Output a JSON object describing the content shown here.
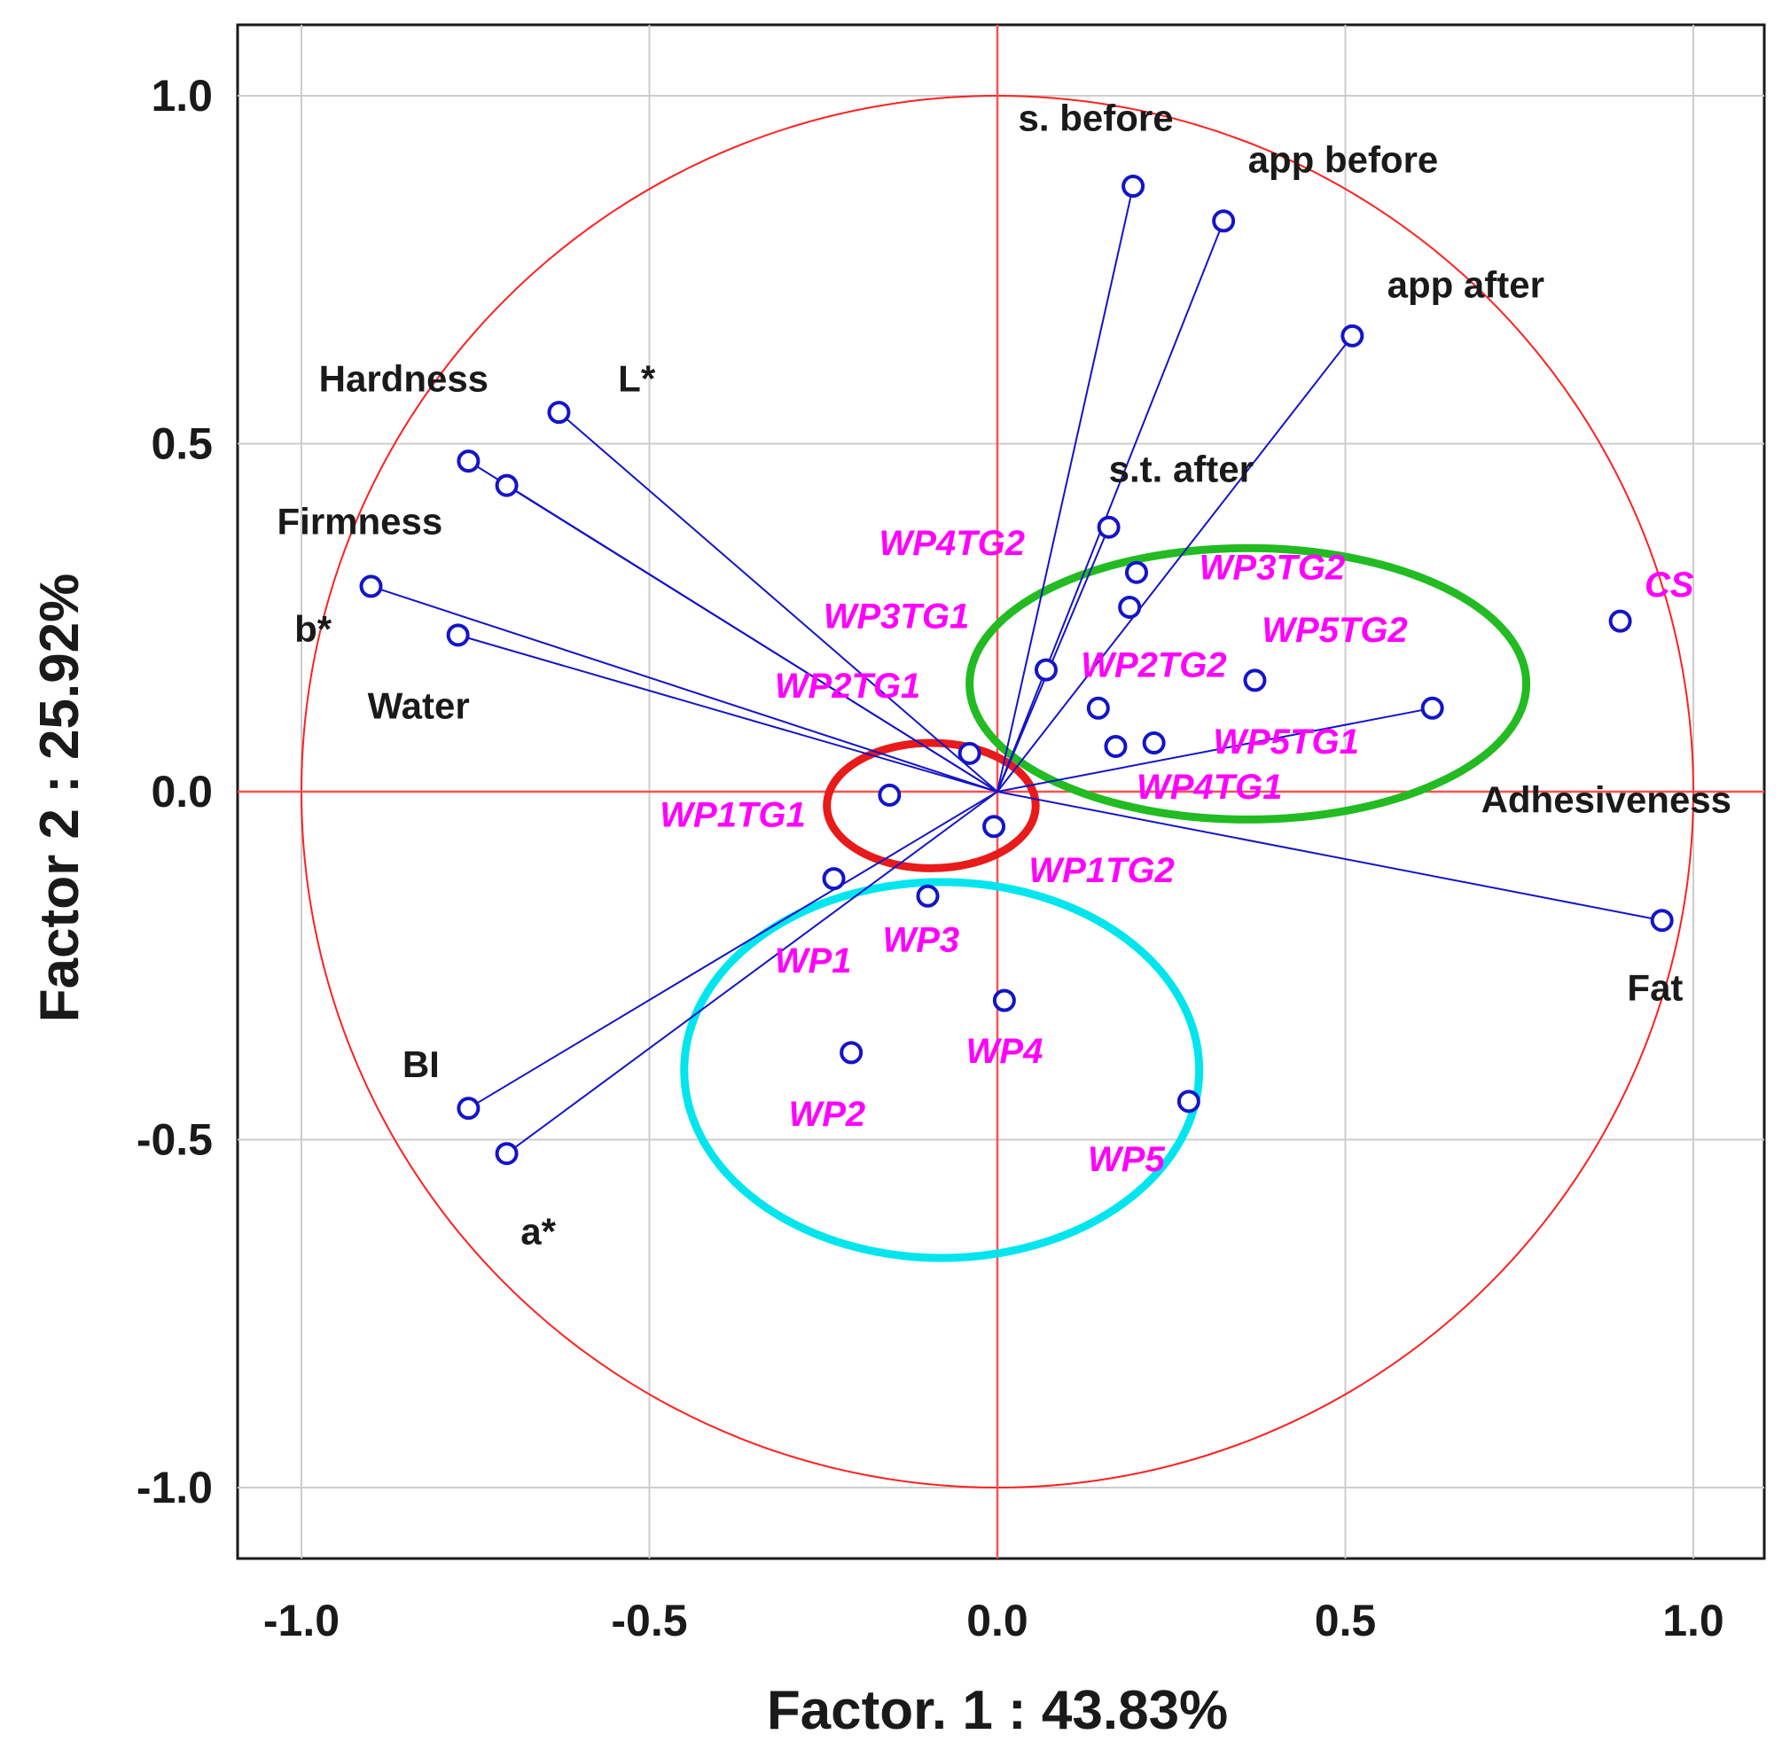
{
  "chart_data": {
    "type": "scatter",
    "title": "",
    "xlabel": "Factor. 1 : 43.83%",
    "ylabel": "Factor 2 : 25.92%",
    "xlim": [
      -1.1,
      1.1
    ],
    "ylim": [
      -1.1,
      1.1
    ],
    "x_ticks": [
      -1.0,
      -0.5,
      0.0,
      0.5,
      1.0
    ],
    "y_ticks": [
      1.0,
      0.5,
      0.0,
      -0.5,
      -1.0
    ],
    "x_tick_labels": [
      "-1.0",
      "-0.5",
      "0.0",
      "0.5",
      "1.0"
    ],
    "y_tick_labels": [
      "1.0",
      "0.5",
      "0.0",
      "-0.5",
      "-1.0"
    ],
    "grid": true,
    "unit_circle": true,
    "colors": {
      "circle": "#ff2020",
      "axes": "#ff5050",
      "vector": "#1414c8",
      "variable_label": "#1a1a1a",
      "sample_label": "#ff00ff",
      "grid": "#cccccc"
    },
    "variables": [
      {
        "name": "s. before",
        "x": 0.195,
        "y": 0.87,
        "lx": 0.03,
        "ly": 0.95,
        "anchor": "start"
      },
      {
        "name": "app before",
        "x": 0.325,
        "y": 0.82,
        "lx": 0.36,
        "ly": 0.89,
        "anchor": "start"
      },
      {
        "name": "app after",
        "x": 0.51,
        "y": 0.655,
        "lx": 0.56,
        "ly": 0.71,
        "anchor": "start"
      },
      {
        "name": "s.t. after",
        "x": 0.16,
        "y": 0.38,
        "lx": 0.16,
        "ly": 0.445,
        "anchor": "start"
      },
      {
        "name": "Hardness",
        "x": -0.76,
        "y": 0.475,
        "lx": -0.975,
        "ly": 0.575,
        "anchor": "start"
      },
      {
        "name": "L*",
        "x": -0.63,
        "y": 0.545,
        "lx": -0.545,
        "ly": 0.575,
        "anchor": "start"
      },
      {
        "name": "Firmness",
        "x": -0.705,
        "y": 0.44,
        "lx": -1.035,
        "ly": 0.37,
        "anchor": "start"
      },
      {
        "name": "b*",
        "x": -0.9,
        "y": 0.295,
        "lx": -1.01,
        "ly": 0.215,
        "anchor": "start"
      },
      {
        "name": "Water",
        "x": -0.775,
        "y": 0.225,
        "lx": -0.905,
        "ly": 0.105,
        "anchor": "start"
      },
      {
        "name": "Adhesiveness",
        "x": 0.625,
        "y": 0.12,
        "lx": 0.695,
        "ly": -0.03,
        "anchor": "start"
      },
      {
        "name": "Fat",
        "x": 0.955,
        "y": -0.185,
        "lx": 0.905,
        "ly": -0.3,
        "anchor": "start"
      },
      {
        "name": "BI",
        "x": -0.76,
        "y": -0.455,
        "lx": -0.855,
        "ly": -0.41,
        "anchor": "start"
      },
      {
        "name": "a*",
        "x": -0.705,
        "y": -0.52,
        "lx": -0.685,
        "ly": -0.65,
        "anchor": "start"
      }
    ],
    "samples": [
      {
        "name": "CS",
        "x": 0.895,
        "y": 0.245,
        "lx": 0.93,
        "ly": 0.28,
        "anchor": "start"
      },
      {
        "name": "WP4TG2",
        "x": 0.07,
        "y": 0.175,
        "lx": -0.17,
        "ly": 0.34,
        "anchor": "start"
      },
      {
        "name": "WP3TG2",
        "x": 0.2,
        "y": 0.315,
        "lx": 0.29,
        "ly": 0.305,
        "anchor": "start"
      },
      {
        "name": "WP3TG1",
        "x": -0.04,
        "y": 0.055,
        "lx": -0.25,
        "ly": 0.235,
        "anchor": "start"
      },
      {
        "name": "WP5TG2",
        "x": 0.37,
        "y": 0.16,
        "lx": 0.38,
        "ly": 0.215,
        "anchor": "start"
      },
      {
        "name": "WP2TG1",
        "x": 0.145,
        "y": 0.12,
        "lx": -0.32,
        "ly": 0.135,
        "anchor": "start"
      },
      {
        "name": "WP2TG2",
        "x": 0.19,
        "y": 0.265,
        "lx": 0.12,
        "ly": 0.165,
        "anchor": "start"
      },
      {
        "name": "WP5TG1",
        "x": 0.225,
        "y": 0.07,
        "lx": 0.31,
        "ly": 0.055,
        "anchor": "start"
      },
      {
        "name": "WP4TG1",
        "x": 0.17,
        "y": 0.065,
        "lx": 0.2,
        "ly": -0.01,
        "anchor": "start"
      },
      {
        "name": "WP1TG1",
        "x": -0.155,
        "y": -0.005,
        "lx": -0.485,
        "ly": -0.05,
        "anchor": "start"
      },
      {
        "name": "WP1TG2",
        "x": -0.005,
        "y": -0.05,
        "lx": 0.045,
        "ly": -0.13,
        "anchor": "start"
      },
      {
        "name": "WP1",
        "x": -0.235,
        "y": -0.125,
        "lx": -0.32,
        "ly": -0.26,
        "anchor": "start"
      },
      {
        "name": "WP3",
        "x": -0.1,
        "y": -0.15,
        "lx": -0.165,
        "ly": -0.23,
        "anchor": "start"
      },
      {
        "name": "WP4",
        "x": 0.01,
        "y": -0.3,
        "lx": -0.045,
        "ly": -0.39,
        "anchor": "start"
      },
      {
        "name": "WP2",
        "x": -0.21,
        "y": -0.375,
        "lx": -0.3,
        "ly": -0.48,
        "anchor": "start"
      },
      {
        "name": "WP5",
        "x": 0.275,
        "y": -0.445,
        "lx": 0.13,
        "ly": -0.545,
        "anchor": "start"
      }
    ],
    "cluster_ellipses": [
      {
        "name": "control-cluster",
        "color": "#e81a1a",
        "cx": -0.095,
        "cy": -0.02,
        "rx": 0.15,
        "ry": 0.09
      },
      {
        "name": "treated-cluster",
        "color": "#22bb22",
        "cx": 0.36,
        "cy": 0.155,
        "rx": 0.4,
        "ry": 0.195
      },
      {
        "name": "raw-cluster",
        "color": "#00e5ee",
        "cx": -0.08,
        "cy": -0.4,
        "rx": 0.37,
        "ry": 0.27
      }
    ]
  }
}
